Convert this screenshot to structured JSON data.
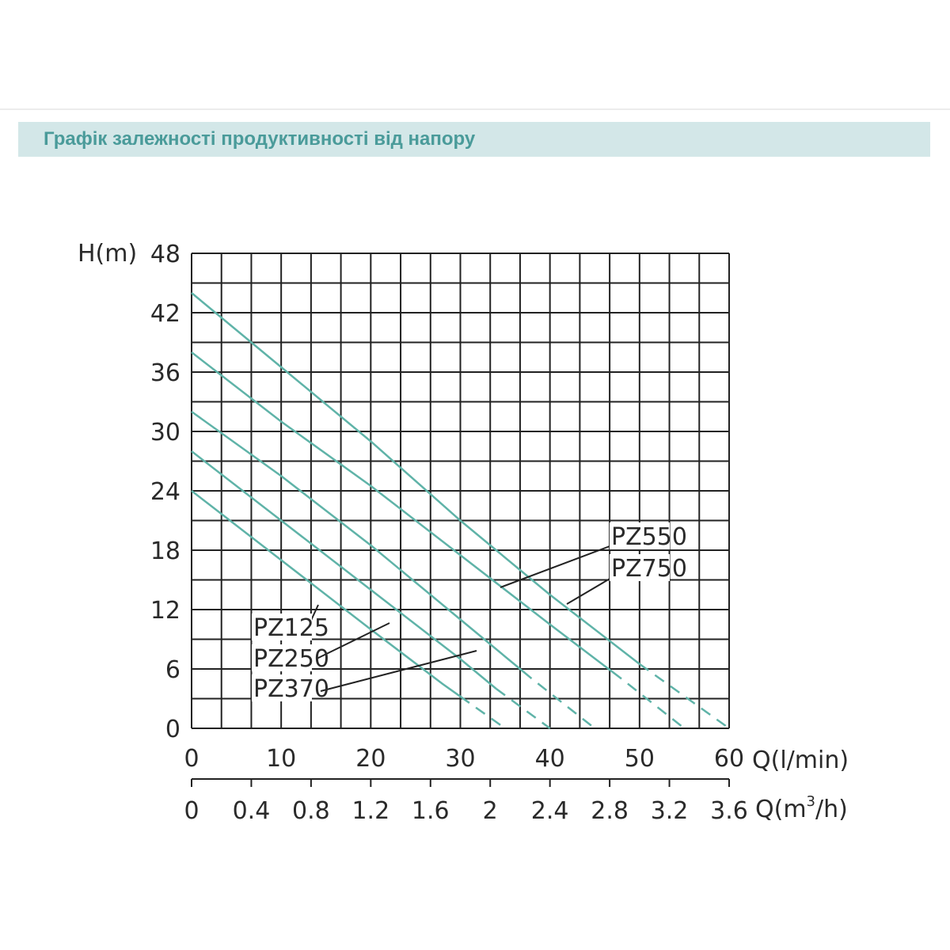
{
  "header": {
    "title": "Графік залежності продуктивності від напору"
  },
  "chart_data": {
    "type": "line",
    "title": "",
    "ylabel": "H(m)",
    "xlabel": "Q(l/min)",
    "x2label_prefix": "Q(m",
    "x2label_sup": "3",
    "x2label_suffix": "/h)",
    "xlim": [
      0,
      60
    ],
    "ylim": [
      0,
      48
    ],
    "x2lim": [
      0,
      3.6
    ],
    "grid": true,
    "yticks": [
      "0",
      "6",
      "12",
      "18",
      "24",
      "30",
      "36",
      "42",
      "48"
    ],
    "xticks": [
      "0",
      "10",
      "20",
      "30",
      "40",
      "50",
      "60"
    ],
    "x2ticks": [
      "0",
      "0.4",
      "0.8",
      "1.2",
      "1.6",
      "2",
      "2.4",
      "2.8",
      "3.2",
      "3.6"
    ],
    "line_color": "#5fb3a8",
    "series": [
      {
        "name": "PZ750",
        "points": [
          [
            0,
            44
          ],
          [
            10,
            36.5
          ],
          [
            20,
            29
          ],
          [
            30,
            21
          ],
          [
            40,
            13.5
          ],
          [
            50,
            6.5
          ],
          [
            60,
            0
          ]
        ],
        "dashed_from": 50
      },
      {
        "name": "PZ550",
        "points": [
          [
            0,
            38
          ],
          [
            10,
            31
          ],
          [
            20,
            24.5
          ],
          [
            30,
            17.5
          ],
          [
            40,
            10.5
          ],
          [
            48,
            5
          ],
          [
            55,
            0
          ]
        ],
        "dashed_from": 47
      },
      {
        "name": "PZ370",
        "points": [
          [
            0,
            32
          ],
          [
            10,
            25.5
          ],
          [
            20,
            18.5
          ],
          [
            30,
            11
          ],
          [
            38,
            5
          ],
          [
            45,
            0
          ]
        ],
        "dashed_from": 37
      },
      {
        "name": "PZ250",
        "points": [
          [
            0,
            28
          ],
          [
            10,
            21
          ],
          [
            20,
            14
          ],
          [
            30,
            7
          ],
          [
            34,
            4
          ],
          [
            40,
            0
          ]
        ],
        "dashed_from": 34
      },
      {
        "name": "PZ125",
        "points": [
          [
            0,
            24
          ],
          [
            10,
            17
          ],
          [
            20,
            10
          ],
          [
            28,
            4.5
          ],
          [
            35,
            0
          ]
        ],
        "dashed_from": 30
      }
    ]
  }
}
